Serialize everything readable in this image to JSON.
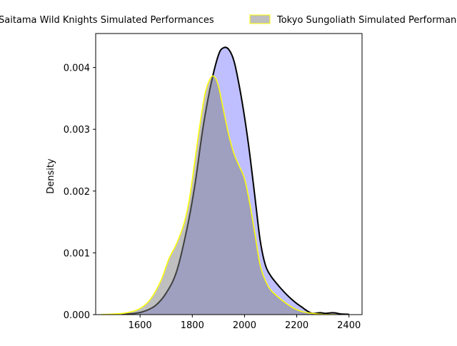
{
  "chart_data": {
    "type": "area",
    "title": "",
    "xlabel": "",
    "ylabel": "Density",
    "xlim": [
      1430,
      2450
    ],
    "ylim": [
      0,
      0.00455
    ],
    "x_ticks": [
      1600,
      1800,
      2000,
      2200,
      2400
    ],
    "y_ticks": [
      0.0,
      0.001,
      0.002,
      0.003,
      0.004
    ],
    "x_tick_labels": [
      "1600",
      "1800",
      "2000",
      "2200",
      "2400"
    ],
    "y_tick_labels": [
      "0.000",
      "0.001",
      "0.002",
      "0.003",
      "0.004"
    ],
    "grid": false,
    "legend_position": "top",
    "series": [
      {
        "name": "Saitama Wild Knights Simulated Performances",
        "fill": "#0000ff",
        "fill_opacity": 0.25,
        "stroke": "#000000",
        "x": [
          1530,
          1580,
          1620,
          1660,
          1700,
          1740,
          1780,
          1810,
          1840,
          1870,
          1900,
          1920,
          1940,
          1960,
          1980,
          2000,
          2020,
          2040,
          2060,
          2080,
          2100,
          2120,
          2140,
          2160,
          2180,
          2200,
          2220,
          2240,
          2260,
          2290,
          2310,
          2340,
          2370,
          2400
        ],
        "y": [
          1e-05,
          2e-05,
          6e-05,
          0.00015,
          0.00035,
          0.0007,
          0.0014,
          0.0021,
          0.003,
          0.0037,
          0.0042,
          0.00432,
          0.00429,
          0.0041,
          0.0037,
          0.0032,
          0.0026,
          0.0019,
          0.0012,
          0.0008,
          0.00063,
          0.00052,
          0.00042,
          0.00033,
          0.00025,
          0.00018,
          0.00012,
          6e-05,
          2e-05,
          3e-05,
          2e-05,
          3e-05,
          1e-05,
          5e-06
        ]
      },
      {
        "name": "Tokyo Sungoliath Simulated Performances",
        "fill": "#808080",
        "fill_opacity": 0.5,
        "stroke": "#ffff00",
        "x": [
          1450,
          1500,
          1550,
          1600,
          1640,
          1680,
          1710,
          1740,
          1770,
          1790,
          1810,
          1830,
          1850,
          1870,
          1885,
          1900,
          1920,
          1940,
          1960,
          1980,
          2000,
          2020,
          2040,
          2060,
          2080,
          2100,
          2130,
          2160,
          2190,
          2220,
          2260,
          2300,
          2350
        ],
        "y": [
          2e-06,
          1e-05,
          3e-05,
          0.0001,
          0.00025,
          0.00055,
          0.0009,
          0.00115,
          0.0015,
          0.0019,
          0.0025,
          0.0031,
          0.0036,
          0.00383,
          0.00385,
          0.0037,
          0.0033,
          0.0029,
          0.0026,
          0.0024,
          0.0022,
          0.0018,
          0.0013,
          0.0008,
          0.00055,
          0.0004,
          0.00028,
          0.00018,
          0.0001,
          5e-05,
          2e-05,
          5e-06,
          1e-06
        ]
      }
    ]
  }
}
